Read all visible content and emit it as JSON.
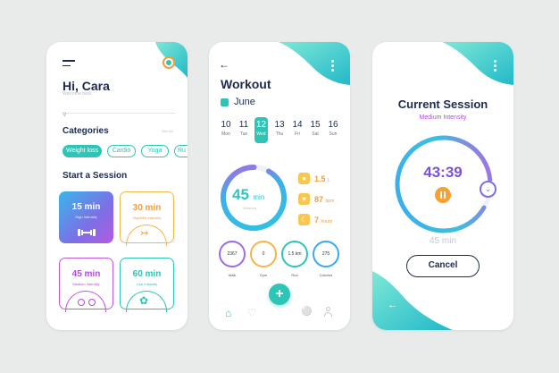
{
  "screen1": {
    "greeting": "Hi, Cara",
    "subtitle": "Welcome back",
    "categories_label": "Categories",
    "see_all": "See All",
    "chips": [
      "Weight loss",
      "Cardio",
      "Yoga",
      "Ru"
    ],
    "start_label": "Start a Session",
    "cards": [
      {
        "time": "15 min",
        "level": "High Intensity"
      },
      {
        "time": "30 min",
        "level": "High/Mid Intensity"
      },
      {
        "time": "45 min",
        "level": "Medium Intensity"
      },
      {
        "time": "60 min",
        "level": "Low Intensity"
      }
    ]
  },
  "screen2": {
    "title": "Workout",
    "month": "June",
    "days": [
      {
        "num": "10",
        "name": "Mon"
      },
      {
        "num": "11",
        "name": "Tue"
      },
      {
        "num": "12",
        "name": "Wed"
      },
      {
        "num": "13",
        "name": "Thu"
      },
      {
        "num": "14",
        "name": "Fri"
      },
      {
        "num": "15",
        "name": "Sat"
      },
      {
        "num": "16",
        "name": "Sun"
      }
    ],
    "ring_value": "45",
    "ring_unit": "min",
    "ring_sub": "Workout",
    "stats": [
      {
        "value": "1.5",
        "unit": "L"
      },
      {
        "value": "87",
        "unit": "bpm"
      },
      {
        "value": "7",
        "unit": "hours"
      }
    ],
    "minis": [
      {
        "value": "2367",
        "label": "Walk"
      },
      {
        "value": "0",
        "label": "Gym"
      },
      {
        "value": "1.5 km",
        "label": "Run"
      },
      {
        "value": "275",
        "label": "Calories"
      }
    ],
    "fab": "+"
  },
  "screen3": {
    "title": "Current Session",
    "intensity": "Medium Intensity",
    "timer": "43:39",
    "duration": "45 min",
    "cancel": "Cancel"
  },
  "colors": {
    "teal": "#2ec4b6",
    "navy": "#1d2b4f",
    "purple": "#b44be1",
    "orange": "#f7a034"
  }
}
